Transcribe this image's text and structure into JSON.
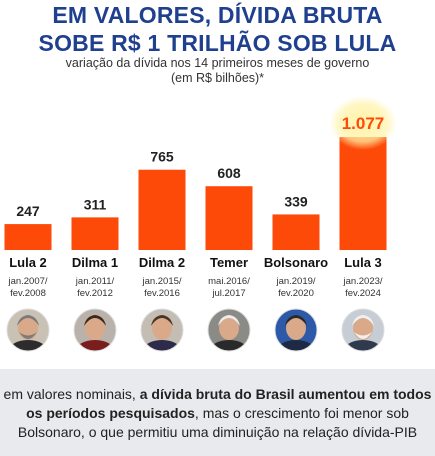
{
  "header": {
    "title_line1": "EM VALORES, DÍVIDA BRUTA",
    "title_line2": "SOBE R$ 1 TRILHÃO SOB LULA",
    "subtitle_line1": "variação da dívida nos 14 primeiros meses de governo",
    "subtitle_line2": "(em R$ bilhões)*"
  },
  "chart_data": {
    "type": "bar",
    "title": "EM VALORES, DÍVIDA BRUTA SOBE R$ 1 TRILHÃO SOB LULA",
    "categories": [
      "Lula 2",
      "Dilma 1",
      "Dilma 2",
      "Temer",
      "Bolsonaro",
      "Lula 3"
    ],
    "values": [
      247,
      311,
      765,
      608,
      339,
      1077
    ],
    "value_labels": [
      "247",
      "311",
      "765",
      "608",
      "339",
      "1.077"
    ],
    "periods": [
      [
        "jan.2007/",
        "fev.2008"
      ],
      [
        "jan.2011/",
        "fev.2012"
      ],
      [
        "jan.2015/",
        "fev.2016"
      ],
      [
        "mai.2016/",
        "jul.2017"
      ],
      [
        "jan.2019/",
        "fev.2020"
      ],
      [
        "jan.2023/",
        "fev.2024"
      ]
    ],
    "ylim": [
      0,
      1077
    ],
    "grid": false,
    "highlight_index": 5,
    "colors": {
      "bar": "#fd4a09",
      "value_text": "#222222",
      "highlight_text": "#fd4a09",
      "highlight_glow": "#fff3a8",
      "category_text": "#111111",
      "period_text": "#333333"
    }
  },
  "footer": {
    "text_part1": "em valores nominais, ",
    "text_bold": "a dívida bruta do Brasil aumentou em todos os períodos pesquisados",
    "text_part2": ", mas o crescimento foi menor sob Bolsonaro, o que permitiu uma diminuição na relação dívida-PIB"
  },
  "icons": [
    "portrait-lula-2",
    "portrait-dilma-1",
    "portrait-dilma-2",
    "portrait-temer",
    "portrait-bolsonaro",
    "portrait-lula-3"
  ]
}
